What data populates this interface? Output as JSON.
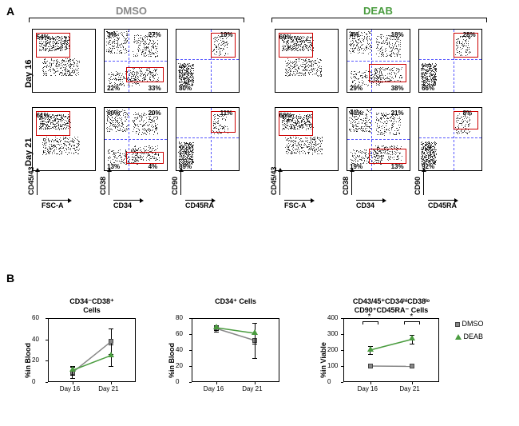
{
  "panelA": {
    "label": "A"
  },
  "panelB": {
    "label": "B"
  },
  "columns": {
    "dmso": {
      "title": "DMSO",
      "color": "#888888"
    },
    "deab": {
      "title": "DEAB",
      "color": "#4a9c3f"
    }
  },
  "rows": {
    "d16": {
      "label": "Day 16"
    },
    "d21": {
      "label": "Day 21"
    }
  },
  "axes": {
    "fsc": "FSC-A",
    "cd4543": "CD45/43",
    "cd34": "CD34",
    "cd38": "CD38",
    "cd45ra": "CD45RA",
    "cd90": "CD90"
  },
  "plots": {
    "dmso_d16_p1": {
      "pct": "54%",
      "gate": [
        5,
        5,
        55,
        40
      ]
    },
    "dmso_d16_p2": {
      "q": [
        "3%",
        "27%",
        "22%",
        "33%"
      ],
      "gate": [
        35,
        60,
        60,
        25
      ]
    },
    "dmso_d16_p3": {
      "q": [
        "",
        "19%",
        "80%",
        ""
      ],
      "gate": [
        55,
        5,
        40,
        40
      ]
    },
    "dmso_d21_p1": {
      "pct": "61%",
      "gate": [
        5,
        5,
        55,
        40
      ]
    },
    "dmso_d21_p2": {
      "q": [
        "60%",
        "20%",
        "13%",
        "4%"
      ],
      "gate": [
        35,
        70,
        60,
        20
      ]
    },
    "dmso_d21_p3": {
      "q": [
        "",
        "11%",
        "89%",
        ""
      ],
      "gate": [
        55,
        5,
        40,
        35
      ]
    },
    "deab_d16_p1": {
      "pct": "69%",
      "gate": [
        5,
        5,
        55,
        40
      ]
    },
    "deab_d16_p2": {
      "q": [
        "4%",
        "18%",
        "29%",
        "38%"
      ],
      "gate": [
        35,
        55,
        60,
        30
      ]
    },
    "deab_d16_p3": {
      "q": [
        "",
        "28%",
        "66%",
        ""
      ],
      "gate": [
        55,
        5,
        40,
        40
      ]
    },
    "deab_d21_p1": {
      "pct": "66%",
      "gate": [
        5,
        5,
        55,
        40
      ]
    },
    "deab_d21_p2": {
      "q": [
        "40%",
        "21%",
        "19%",
        "13%"
      ],
      "gate": [
        35,
        65,
        60,
        25
      ]
    },
    "deab_d21_p3": {
      "q": [
        "",
        "8%",
        "92%",
        ""
      ],
      "gate": [
        55,
        5,
        40,
        30
      ]
    }
  },
  "charts": {
    "c1": {
      "title": "CD34⁻CD38⁺\nCells",
      "ylabel": "%in Blood",
      "ylim": [
        0,
        60
      ],
      "yticks": [
        0,
        20,
        40,
        60
      ],
      "xcats": [
        "Day 16",
        "Day 21"
      ],
      "dmso": {
        "vals": [
          9,
          38
        ],
        "err": [
          5,
          12
        ],
        "color": "#888888"
      },
      "deab": {
        "vals": [
          11,
          25
        ],
        "err": [
          4,
          10
        ],
        "color": "#4a9c3f"
      }
    },
    "c2": {
      "title": "CD34⁺ Cells",
      "ylabel": "%in Blood",
      "ylim": [
        0,
        80
      ],
      "yticks": [
        0,
        20,
        40,
        60,
        80
      ],
      "xcats": [
        "Day 16",
        "Day 21"
      ],
      "dmso": {
        "vals": [
          67,
          52
        ],
        "err": [
          4,
          22
        ],
        "color": "#888888"
      },
      "deab": {
        "vals": [
          68,
          61
        ],
        "err": [
          3,
          13
        ],
        "color": "#4a9c3f"
      }
    },
    "c3": {
      "title": "CD43/45⁺CD34ʰⁱCD38ˡᵒ\nCD90⁺CD45RA⁻ Cells",
      "ylabel": "%in Viable",
      "ylim": [
        0,
        400
      ],
      "yticks": [
        0,
        100,
        200,
        300,
        400
      ],
      "xcats": [
        "Day 16",
        "Day 21"
      ],
      "dmso": {
        "vals": [
          100,
          98
        ],
        "err": [
          0,
          8
        ],
        "color": "#888888"
      },
      "deab": {
        "vals": [
          200,
          268
        ],
        "err": [
          25,
          28
        ],
        "color": "#4a9c3f"
      },
      "sig": [
        "*",
        "*"
      ]
    }
  },
  "legend": {
    "dmso": "DMSO",
    "deab": "DEAB"
  }
}
